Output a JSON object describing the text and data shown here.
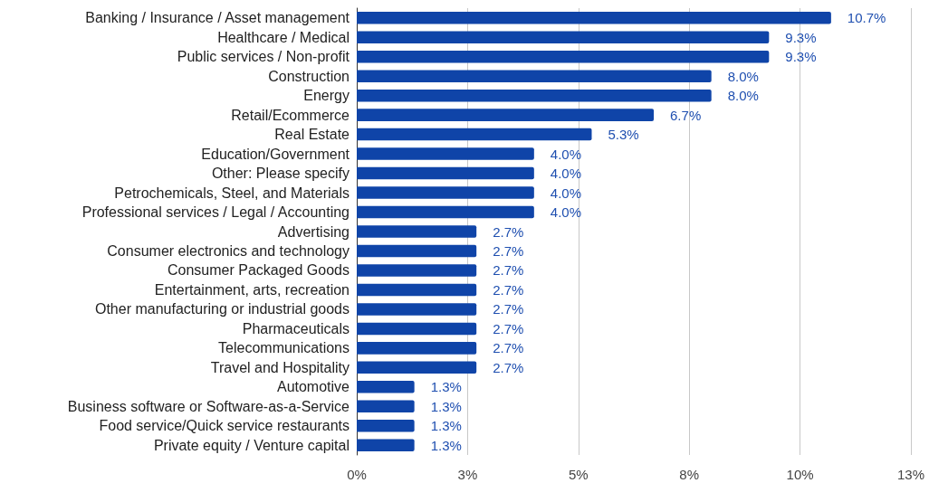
{
  "chart_data": {
    "type": "bar",
    "orientation": "horizontal",
    "categories": [
      "Banking / Insurance / Asset management",
      "Healthcare / Medical",
      "Public services / Non-profit",
      "Construction",
      "Energy",
      "Retail/Ecommerce",
      "Real Estate",
      "Education/Government",
      "Other: Please specify",
      "Petrochemicals, Steel, and Materials",
      "Professional services / Legal / Accounting",
      "Advertising",
      "Consumer electronics and technology",
      "Consumer Packaged Goods",
      "Entertainment, arts, recreation",
      "Other manufacturing or industrial goods",
      "Pharmaceuticals",
      "Telecommunications",
      "Travel and Hospitality",
      "Automotive",
      "Business software or Software-as-a-Service",
      "Food service/Quick service restaurants",
      "Private equity / Venture capital"
    ],
    "values": [
      10.7,
      9.3,
      9.3,
      8.0,
      8.0,
      6.7,
      5.3,
      4.0,
      4.0,
      4.0,
      4.0,
      2.7,
      2.7,
      2.7,
      2.7,
      2.7,
      2.7,
      2.7,
      2.7,
      1.3,
      1.3,
      1.3,
      1.3
    ],
    "value_labels": [
      "10.7%",
      "9.3%",
      "9.3%",
      "8.0%",
      "8.0%",
      "6.7%",
      "5.3%",
      "4.0%",
      "4.0%",
      "4.0%",
      "4.0%",
      "2.7%",
      "2.7%",
      "2.7%",
      "2.7%",
      "2.7%",
      "2.7%",
      "2.7%",
      "2.7%",
      "1.3%",
      "1.3%",
      "1.3%",
      "1.3%"
    ],
    "color": "#0f44a8",
    "xlim": [
      0,
      12.5
    ],
    "xticks": [
      {
        "value": 0,
        "label": "0%"
      },
      {
        "value": 2.5,
        "label": "3%"
      },
      {
        "value": 5,
        "label": "5%"
      },
      {
        "value": 7.5,
        "label": "8%"
      },
      {
        "value": 10,
        "label": "10%"
      },
      {
        "value": 12.5,
        "label": "13%"
      }
    ],
    "grid": "x"
  }
}
